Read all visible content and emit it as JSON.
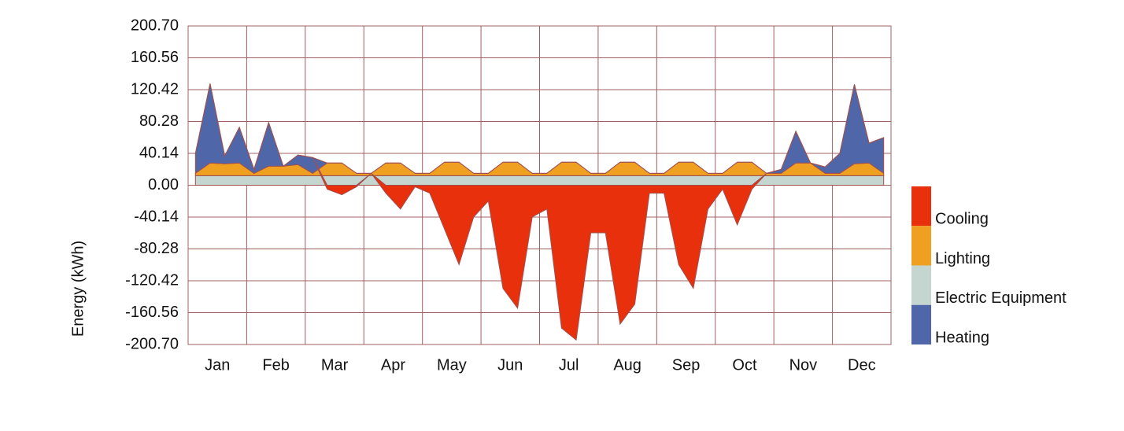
{
  "chart_data": {
    "type": "stacked-area",
    "y_label": "Energy (kWh)",
    "x": [
      0.125,
      0.375,
      0.625,
      0.875,
      1.125,
      1.375,
      1.625,
      1.875,
      2.125,
      2.375,
      2.625,
      2.875,
      3.125,
      3.375,
      3.625,
      3.875,
      4.125,
      4.375,
      4.625,
      4.875,
      5.125,
      5.375,
      5.625,
      5.875,
      6.125,
      6.375,
      6.625,
      6.875,
      7.125,
      7.375,
      7.625,
      7.875,
      8.125,
      8.375,
      8.625,
      8.875,
      9.125,
      9.375,
      9.625,
      9.875,
      10.125,
      10.375,
      10.625,
      10.875,
      11.125,
      11.375,
      11.625,
      11.875
    ],
    "xlim": [
      0,
      12
    ],
    "xticks": [
      {
        "value": 0.5,
        "label": "Jan"
      },
      {
        "value": 1.5,
        "label": "Feb"
      },
      {
        "value": 2.5,
        "label": "Mar"
      },
      {
        "value": 3.5,
        "label": "Apr"
      },
      {
        "value": 4.5,
        "label": "May"
      },
      {
        "value": 5.5,
        "label": "Jun"
      },
      {
        "value": 6.5,
        "label": "Jul"
      },
      {
        "value": 7.5,
        "label": "Aug"
      },
      {
        "value": 8.5,
        "label": "Sep"
      },
      {
        "value": 9.5,
        "label": "Oct"
      },
      {
        "value": 10.5,
        "label": "Nov"
      },
      {
        "value": 11.5,
        "label": "Dec"
      }
    ],
    "ylim": [
      -200.7,
      200.7
    ],
    "yticks": [
      {
        "value": -200.7,
        "label": "-200.70"
      },
      -160.56,
      -120.42,
      -80.28,
      -40.14,
      {
        "value": 0,
        "label": "0.00"
      },
      40.14,
      80.28,
      120.42,
      160.56,
      {
        "value": 200.7,
        "label": "200.70"
      }
    ],
    "grid": true,
    "series": [
      {
        "name": "Cooling",
        "color": "#e8300c",
        "values": [
          0,
          0,
          0,
          0,
          0,
          0,
          0,
          0,
          0,
          -5,
          -12,
          -2,
          0,
          -10,
          -30,
          -2,
          -10,
          -55,
          -100,
          -40,
          -20,
          -130,
          -155,
          -40,
          -30,
          -180,
          -195,
          -60,
          -60,
          -175,
          -150,
          -10,
          -10,
          -100,
          -130,
          -30,
          -5,
          -50,
          -5,
          0,
          0,
          0,
          0,
          0,
          0,
          0,
          0,
          0
        ]
      },
      {
        "name": "Lighting",
        "color": "#f0a020",
        "values": [
          3,
          16,
          15,
          16,
          3,
          12,
          12,
          14,
          3,
          16,
          16,
          3,
          3,
          16,
          16,
          3,
          3,
          17,
          17,
          3,
          3,
          17,
          17,
          3,
          3,
          17,
          17,
          3,
          3,
          17,
          17,
          3,
          3,
          17,
          17,
          3,
          3,
          17,
          17,
          3,
          3,
          16,
          16,
          3,
          3,
          15,
          16,
          3
        ]
      },
      {
        "name": "Electric Equipment",
        "color": "#c5d5d0",
        "values": [
          12,
          12,
          12,
          12,
          12,
          12,
          12,
          12,
          12,
          12,
          12,
          12,
          12,
          12,
          12,
          12,
          12,
          12,
          12,
          12,
          12,
          12,
          12,
          12,
          12,
          12,
          12,
          12,
          12,
          12,
          12,
          12,
          12,
          12,
          12,
          12,
          12,
          12,
          12,
          12,
          12,
          12,
          12,
          12,
          12,
          12,
          12,
          12
        ]
      },
      {
        "name": "Heating",
        "color": "#4f67a8",
        "values": [
          25,
          100,
          10,
          45,
          5,
          55,
          0,
          12,
          20,
          0,
          0,
          0,
          0,
          0,
          0,
          0,
          0,
          0,
          0,
          0,
          0,
          0,
          0,
          0,
          0,
          0,
          0,
          0,
          0,
          0,
          0,
          0,
          0,
          0,
          0,
          0,
          0,
          0,
          0,
          0,
          5,
          40,
          0,
          8,
          25,
          100,
          25,
          45
        ]
      }
    ]
  }
}
